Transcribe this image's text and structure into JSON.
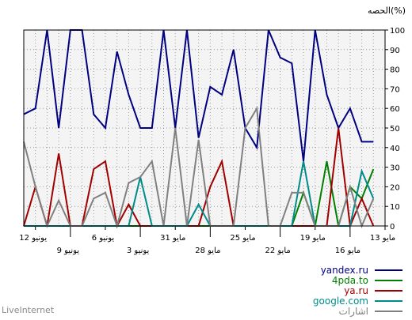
{
  "chart_data": {
    "type": "line",
    "ylabel": "الحصه(%)",
    "ylim": [
      0,
      100
    ],
    "yticks": [
      0,
      10,
      20,
      30,
      40,
      50,
      60,
      70,
      80,
      90,
      100
    ],
    "xlim": [
      0,
      31
    ],
    "x_ticks": [
      {
        "x": 1,
        "label": "12 يونيو",
        "row": 0
      },
      {
        "x": 4,
        "label": "9 يونيو",
        "row": 1
      },
      {
        "x": 7,
        "label": "6 يونيو",
        "row": 0
      },
      {
        "x": 10,
        "label": "3 يونيو",
        "row": 1
      },
      {
        "x": 13,
        "label": "31 مايو",
        "row": 0
      },
      {
        "x": 16,
        "label": "28 مايو",
        "row": 1
      },
      {
        "x": 19,
        "label": "25 مايو",
        "row": 0
      },
      {
        "x": 22,
        "label": "22 مايو",
        "row": 1
      },
      {
        "x": 25,
        "label": "19 مايو",
        "row": 0
      },
      {
        "x": 28,
        "label": "16 مايو",
        "row": 1
      },
      {
        "x": 31,
        "label": "13 مايو",
        "row": 0
      }
    ],
    "series": [
      {
        "name": "yandex.ru",
        "color": "#000080",
        "values": [
          57,
          60,
          100,
          50,
          100,
          100,
          57,
          50,
          89,
          67,
          50,
          50,
          100,
          50,
          100,
          45,
          71,
          67,
          90,
          50,
          40,
          100,
          86,
          83,
          33,
          100,
          67,
          50,
          60,
          43,
          43
        ]
      },
      {
        "name": "4pda.to",
        "color": "#008000",
        "values": [
          0,
          0,
          0,
          0,
          0,
          0,
          0,
          0,
          0,
          0,
          0,
          0,
          0,
          0,
          0,
          0,
          0,
          0,
          0,
          0,
          0,
          0,
          0,
          0,
          17,
          0,
          33,
          0,
          20,
          14,
          29
        ]
      },
      {
        "name": "ya.ru",
        "color": "#a00000",
        "values": [
          0,
          20,
          0,
          37,
          0,
          0,
          29,
          33,
          0,
          11,
          0,
          0,
          0,
          0,
          0,
          0,
          20,
          33,
          0,
          0,
          0,
          0,
          0,
          0,
          0,
          0,
          0,
          50,
          0,
          14,
          0
        ]
      },
      {
        "name": "google.com",
        "color": "#008b8b",
        "values": [
          0,
          0,
          0,
          0,
          0,
          0,
          0,
          0,
          0,
          0,
          25,
          0,
          0,
          0,
          0,
          11,
          0,
          0,
          0,
          0,
          0,
          0,
          0,
          0,
          33,
          0,
          0,
          0,
          0,
          28,
          14
        ]
      },
      {
        "name": "اشارات",
        "color": "#808080",
        "values": [
          43,
          20,
          0,
          13,
          0,
          0,
          14,
          17,
          0,
          22,
          25,
          33,
          0,
          50,
          0,
          44,
          0,
          0,
          0,
          50,
          60,
          0,
          0,
          17,
          17,
          0,
          0,
          0,
          20,
          0,
          14
        ]
      }
    ]
  },
  "footer": {
    "brand": "LiveInternet"
  }
}
